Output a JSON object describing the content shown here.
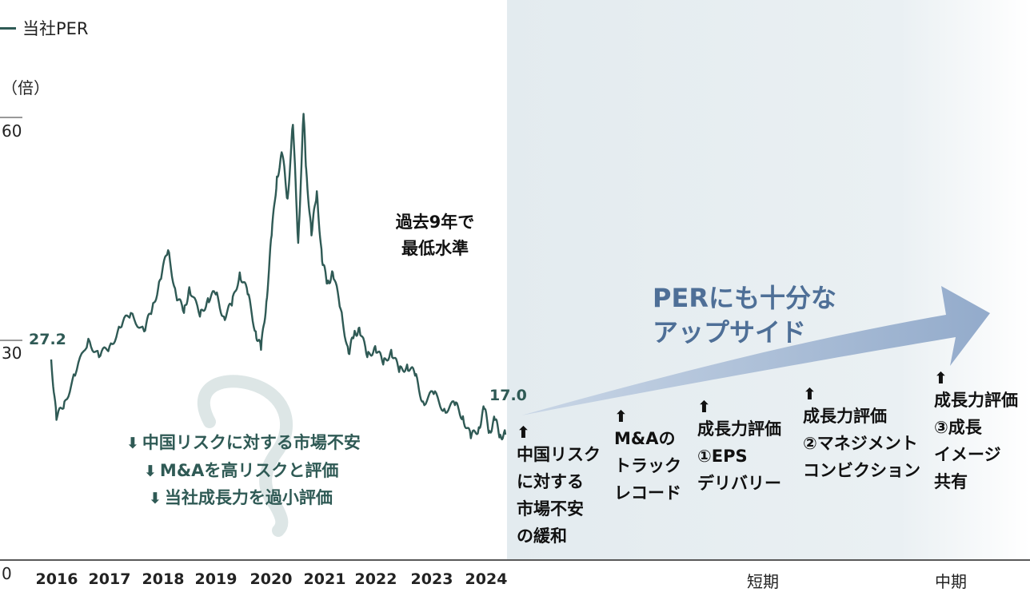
{
  "chart_data": {
    "type": "line",
    "legend": "当社PER",
    "legend_position": "top-left",
    "unit_label": "（倍）",
    "y_ticks": [
      "60",
      "30",
      "0"
    ],
    "ylim": [
      0,
      60
    ],
    "x_categories": [
      "2016",
      "2017",
      "2018",
      "2019",
      "2020",
      "2021",
      "2022",
      "2023",
      "2024"
    ],
    "phase_labels": [
      "短期",
      "中期"
    ],
    "series": [
      {
        "name": "当社PER",
        "x": [
          2016.0,
          2016.1,
          2016.25,
          2016.45,
          2016.7,
          2016.9,
          2017.1,
          2017.3,
          2017.5,
          2017.75,
          2017.9,
          2018.05,
          2018.2,
          2018.35,
          2018.5,
          2018.6,
          2018.8,
          2018.95,
          2019.1,
          2019.25,
          2019.4,
          2019.55,
          2019.7,
          2019.85,
          2019.95,
          2020.05,
          2020.15,
          2020.25,
          2020.35,
          2020.45,
          2020.55,
          2020.65,
          2020.75,
          2020.8,
          2020.9,
          2021.0,
          2021.1,
          2021.2,
          2021.3,
          2021.45,
          2021.6,
          2021.7,
          2021.8,
          2021.95,
          2022.1,
          2022.25,
          2022.4,
          2022.55,
          2022.7,
          2022.85,
          2023.0,
          2023.2,
          2023.4,
          2023.6,
          2023.75,
          2023.9,
          2024.05,
          2024.15,
          2024.25,
          2024.35,
          2024.45,
          2024.55
        ],
        "values": [
          27.2,
          19.0,
          21.5,
          25.0,
          30.0,
          27.5,
          29.0,
          31.5,
          33.5,
          31.0,
          34.0,
          38.0,
          42.0,
          36.0,
          33.5,
          37.0,
          33.0,
          35.5,
          36.0,
          33.0,
          34.5,
          39.0,
          36.0,
          31.0,
          28.5,
          35.0,
          44.0,
          52.0,
          55.0,
          49.0,
          59.0,
          43.0,
          60.5,
          53.0,
          44.0,
          50.0,
          40.5,
          37.5,
          39.0,
          34.0,
          28.0,
          30.5,
          31.5,
          27.5,
          29.0,
          26.5,
          28.5,
          25.5,
          26.5,
          25.0,
          21.5,
          22.5,
          20.5,
          21.0,
          19.5,
          16.5,
          18.0,
          20.5,
          17.5,
          19.0,
          17.0,
          17.0
        ]
      }
    ],
    "annotations": {
      "start_value": "27.2",
      "end_value": "17.0",
      "low_note": [
        "過去9年で",
        "最低水準"
      ],
      "bearish_factors": [
        "中国リスクに対する市場不安",
        "M&Aを高リスクと評価",
        "当社成長力を過小評価"
      ],
      "upside_text": [
        "PERにも十分な",
        "アップサイド"
      ],
      "catalysts": [
        {
          "lines": [
            "中国リスク",
            "に対する",
            "市場不安",
            "の緩和"
          ]
        },
        {
          "lines": [
            "M&Aの",
            "トラック",
            "レコード"
          ]
        },
        {
          "lines": [
            "成長力評価",
            "①EPS",
            "デリバリー"
          ]
        },
        {
          "lines": [
            "成長力評価",
            "②マネジメント",
            "コンビクション"
          ]
        },
        {
          "lines": [
            "成長力評価",
            "③成長",
            "イメージ",
            "共有"
          ]
        }
      ]
    },
    "colors": {
      "line": "#2f5a55",
      "bearish_text": "#2f5a55",
      "upside_text": "#4e6f97",
      "arrow": "#9db3d0",
      "forecast_band": "#e6edf1",
      "question_mark": "#dde6e6"
    },
    "icons": {
      "down_arrow": "⬇",
      "up_arrow": "⬆"
    }
  }
}
